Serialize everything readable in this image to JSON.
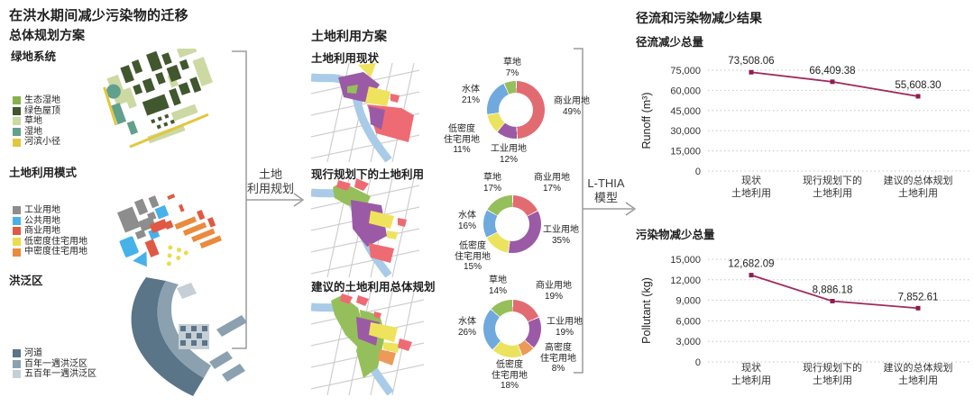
{
  "page": {
    "title": "在洪水期间减少污染物的迁移"
  },
  "left": {
    "heading": "总体规划方案",
    "sections": [
      {
        "title": "绿地系统",
        "legend": [
          {
            "label": "生态湿地",
            "color": "#86b14c"
          },
          {
            "label": "绿色屋顶",
            "color": "#41572e"
          },
          {
            "label": "草地",
            "color": "#ccd9a3"
          },
          {
            "label": "湿地",
            "color": "#60a08c"
          },
          {
            "label": "河滨小径",
            "color": "#e2c73d"
          }
        ]
      },
      {
        "title": "土地利用模式",
        "legend": [
          {
            "label": "工业用地",
            "color": "#8d8d8d"
          },
          {
            "label": "公共用地",
            "color": "#47b2e9"
          },
          {
            "label": "商业用地",
            "color": "#df5a44"
          },
          {
            "label": "低密度住宅用地",
            "color": "#e9dc4f"
          },
          {
            "label": "中密度住宅用地",
            "color": "#ea8a3d"
          }
        ]
      },
      {
        "title": "洪泛区",
        "legend": [
          {
            "label": "河道",
            "color": "#5a7488"
          },
          {
            "label": "百年一遇洪泛区",
            "color": "#8ba1b0"
          },
          {
            "label": "五百年一遇洪泛区",
            "color": "#c6cfd5"
          }
        ]
      }
    ]
  },
  "flow": {
    "arrow1": {
      "line1": "土地",
      "line2": "利用规划"
    },
    "arrow2": {
      "line1": "L-THIA",
      "line2": "模型"
    }
  },
  "middle": {
    "heading": "土地利用方案"
  },
  "right": {
    "heading": "径流和污染物减少结果"
  },
  "chart_data": [
    {
      "type": "pie",
      "variant": "donut",
      "title": "土地利用现状",
      "slices": [
        {
          "label": "商业用地",
          "pct": "49%",
          "value": 49,
          "color": "#e26b72"
        },
        {
          "label": "工业用地",
          "pct": "12%",
          "value": 12,
          "color": "#9b5aa5"
        },
        {
          "label": "低密度住宅用地",
          "label_lines": [
            "低密度",
            "住宅用地"
          ],
          "pct": "11%",
          "value": 11,
          "color": "#ebe35e"
        },
        {
          "label": "水体",
          "pct": "21%",
          "value": 21,
          "color": "#70a9dd"
        },
        {
          "label": "草地",
          "pct": "7%",
          "value": 7,
          "color": "#95bf5b"
        }
      ]
    },
    {
      "type": "pie",
      "variant": "donut",
      "title": "现行规划下的土地利用",
      "slices": [
        {
          "label": "商业用地",
          "pct": "17%",
          "value": 17,
          "color": "#e26b72"
        },
        {
          "label": "工业用地",
          "pct": "35%",
          "value": 35,
          "color": "#9b5aa5"
        },
        {
          "label": "低密度住宅用地",
          "label_lines": [
            "低密度",
            "住宅用地"
          ],
          "pct": "15%",
          "value": 15,
          "color": "#ebe35e"
        },
        {
          "label": "水体",
          "pct": "16%",
          "value": 16,
          "color": "#70a9dd"
        },
        {
          "label": "草地",
          "pct": "17%",
          "value": 17,
          "color": "#95bf5b"
        }
      ]
    },
    {
      "type": "pie",
      "variant": "donut",
      "title": "建议的土地利用总体规划",
      "slices": [
        {
          "label": "商业用地",
          "pct": "19%",
          "value": 19,
          "color": "#e26b72"
        },
        {
          "label": "工业用地",
          "pct": "19%",
          "value": 19,
          "color": "#9b5aa5"
        },
        {
          "label": "高密度住宅用地",
          "label_lines": [
            "高密度",
            "住宅用地"
          ],
          "pct": "8%",
          "value": 8,
          "color": "#ec9a57"
        },
        {
          "label": "低密度住宅用地",
          "label_lines": [
            "低密度",
            "住宅用地"
          ],
          "pct": "18%",
          "value": 18,
          "color": "#ebe35e"
        },
        {
          "label": "水体",
          "pct": "26%",
          "value": 26,
          "color": "#70a9dd"
        },
        {
          "label": "草地",
          "pct": "14%",
          "value": 14,
          "color": "#95bf5b"
        }
      ]
    },
    {
      "type": "line",
      "title": "径流减少总量",
      "ylabel": "Runoff (m³)",
      "categories": [
        [
          "现状",
          "土地利用"
        ],
        [
          "现行规划下的",
          "土地利用"
        ],
        [
          "建议的总体规划",
          "土地利用"
        ]
      ],
      "values": [
        73508.06,
        66409.38,
        55608.3
      ],
      "point_labels": [
        "73,508.06",
        "66,409.38",
        "55,608.30"
      ],
      "ylim": [
        0,
        75000
      ],
      "yticks": [
        {
          "v": 0,
          "label": "0"
        },
        {
          "v": 15000,
          "label": "15,000"
        },
        {
          "v": 30000,
          "label": "30,000"
        },
        {
          "v": 45000,
          "label": "45,000"
        },
        {
          "v": 60000,
          "label": "60,000"
        },
        {
          "v": 75000,
          "label": "75,000"
        }
      ],
      "grid": "dotted",
      "line_color": "#a1295f",
      "marker_color": "#8c1e52"
    },
    {
      "type": "line",
      "title": "污染物减少总量",
      "ylabel": "Pollutant (kg)",
      "categories": [
        [
          "现状",
          "土地利用"
        ],
        [
          "现行规划下的",
          "土地利用"
        ],
        [
          "建议的总体规划",
          "土地利用"
        ]
      ],
      "values": [
        12682.09,
        8886.18,
        7852.61
      ],
      "point_labels": [
        "12,682.09",
        "8,886.18",
        "7,852.61"
      ],
      "ylim": [
        0,
        15000
      ],
      "yticks": [
        {
          "v": 0,
          "label": "0"
        },
        {
          "v": 3000,
          "label": "3,000"
        },
        {
          "v": 6000,
          "label": "6,000"
        },
        {
          "v": 9000,
          "label": "9,000"
        },
        {
          "v": 12000,
          "label": "12,000"
        },
        {
          "v": 15000,
          "label": "15,000"
        }
      ],
      "grid": "dotted",
      "line_color": "#a1295f",
      "marker_color": "#8c1e52"
    }
  ]
}
